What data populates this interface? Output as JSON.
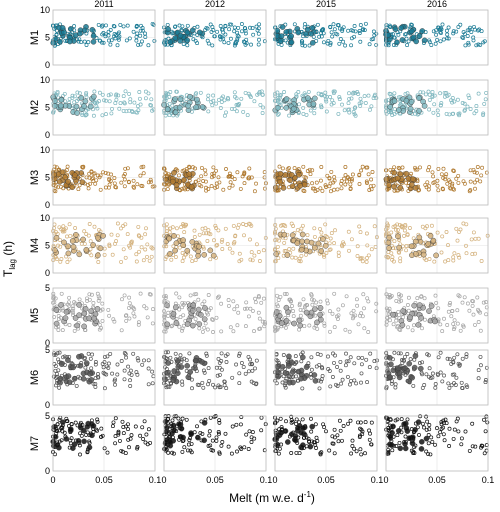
{
  "chart_data": {
    "type": "scatter",
    "columns": [
      "2011",
      "2012",
      "2015",
      "2016"
    ],
    "rows": [
      "M1",
      "M2",
      "M3",
      "M4",
      "M5",
      "M6",
      "M7"
    ],
    "xlabel_main": "Melt (m w.e. d",
    "xlabel_sup": "-1",
    "xlabel_end": ")",
    "ylabel_main": "T",
    "ylabel_sub": "lag",
    "ylabel_end": " (h)",
    "xlim": [
      0,
      0.1
    ],
    "x_ticks": [
      "0",
      "0.05",
      "0.1"
    ],
    "grid": true,
    "legend": "none",
    "panels": [
      {
        "row": "M1",
        "ylim": [
          0,
          10
        ],
        "y_ticks": [
          "0",
          "5",
          "10"
        ],
        "color": "#1a7a94",
        "clusters": [
          {
            "x": [
              0.0,
              0.1
            ],
            "y": [
              3.5,
              7.5
            ]
          },
          {
            "x": [
              0.0,
              0.04
            ],
            "y": [
              4.0,
              7.0
            ]
          }
        ]
      },
      {
        "row": "M2",
        "ylim": [
          0,
          10
        ],
        "y_ticks": [
          "0",
          "5",
          "10"
        ],
        "color": "#7fb7bf",
        "clusters": [
          {
            "x": [
              0.0,
              0.1
            ],
            "y": [
              3.5,
              8.0
            ]
          },
          {
            "x": [
              0.0,
              0.04
            ],
            "y": [
              4.0,
              7.0
            ]
          }
        ]
      },
      {
        "row": "M3",
        "ylim": [
          0,
          10
        ],
        "y_ticks": [
          "0",
          "5",
          "10"
        ],
        "color": "#b07a30",
        "clusters": [
          {
            "x": [
              0.0,
              0.1
            ],
            "y": [
              2.5,
              7.0
            ]
          },
          {
            "x": [
              0.0,
              0.03
            ],
            "y": [
              3.0,
              6.0
            ]
          }
        ]
      },
      {
        "row": "M4",
        "ylim": [
          0,
          10
        ],
        "y_ticks": [
          "0",
          "5",
          "10"
        ],
        "color": "#d4b27e",
        "clusters": [
          {
            "x": [
              0.0,
              0.1
            ],
            "y": [
              2.0,
              9.0
            ]
          },
          {
            "x": [
              0.0,
              0.05
            ],
            "y": [
              3.0,
              7.0
            ]
          }
        ]
      },
      {
        "row": "M5",
        "ylim": [
          0,
          5
        ],
        "y_ticks": [
          "0",
          "5"
        ],
        "color": "#a6a6a6",
        "clusters": [
          {
            "x": [
              0.0,
              0.1
            ],
            "y": [
              1.0,
              4.5
            ]
          },
          {
            "x": [
              0.0,
              0.05
            ],
            "y": [
              1.5,
              3.5
            ]
          }
        ]
      },
      {
        "row": "M6",
        "ylim": [
          0,
          5
        ],
        "y_ticks": [
          "0",
          "5"
        ],
        "color": "#555555",
        "clusters": [
          {
            "x": [
              0.0,
              0.1
            ],
            "y": [
              1.5,
              4.8
            ]
          },
          {
            "x": [
              0.0,
              0.04
            ],
            "y": [
              2.0,
              4.5
            ]
          }
        ]
      },
      {
        "row": "M7",
        "ylim": [
          0,
          5
        ],
        "y_ticks": [
          "0",
          "5"
        ],
        "color": "#111111",
        "clusters": [
          {
            "x": [
              0.0,
              0.1
            ],
            "y": [
              1.5,
              5.0
            ]
          },
          {
            "x": [
              0.0,
              0.04
            ],
            "y": [
              2.0,
              4.5
            ]
          }
        ]
      }
    ]
  }
}
